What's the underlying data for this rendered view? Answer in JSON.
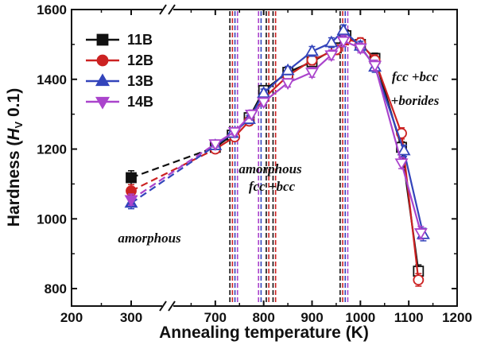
{
  "chart_data": {
    "type": "line",
    "xlabel": "Annealing temperature (K)",
    "ylabel_main": "Hardness (",
    "ylabel_sym": "H",
    "ylabel_sub": "V",
    "ylabel_tail": " 0.1)",
    "x_ticks": [
      "200",
      "300",
      "700",
      "800",
      "900",
      "1000",
      "1100",
      "1200"
    ],
    "y_ticks": [
      "800",
      "1000",
      "1200",
      "1400",
      "1600"
    ],
    "xlim_left": [
      200,
      360
    ],
    "xlim_right": [
      600,
      1200
    ],
    "ylim": [
      750,
      1600
    ],
    "series": [
      {
        "name": "11B",
        "color": "#111111",
        "marker": "square",
        "x": [
          300,
          700,
          735,
          770,
          800,
          850,
          900,
          950,
          970,
          1000,
          1030,
          1085,
          1120
        ],
        "y": [
          1118,
          1205,
          1240,
          1290,
          1368,
          1420,
          1450,
          1490,
          1525,
          1500,
          1460,
          1205,
          850
        ],
        "err": [
          20,
          10,
          10,
          12,
          12,
          12,
          14,
          14,
          16,
          14,
          15,
          16,
          18
        ]
      },
      {
        "name": "12B",
        "color": "#cc2222",
        "marker": "circle",
        "x": [
          300,
          700,
          740,
          770,
          800,
          850,
          900,
          950,
          970,
          1000,
          1030,
          1085,
          1120
        ],
        "y": [
          1080,
          1200,
          1235,
          1280,
          1345,
          1410,
          1455,
          1485,
          1515,
          1505,
          1455,
          1245,
          825
        ],
        "err": [
          18,
          10,
          10,
          12,
          12,
          12,
          14,
          14,
          16,
          14,
          15,
          16,
          18
        ]
      },
      {
        "name": "13B",
        "color": "#3344bb",
        "marker": "triangle-up",
        "x": [
          300,
          700,
          735,
          770,
          800,
          850,
          900,
          940,
          965,
          1000,
          1030,
          1090,
          1130
        ],
        "y": [
          1045,
          1210,
          1245,
          1285,
          1360,
          1425,
          1480,
          1505,
          1540,
          1495,
          1435,
          1195,
          955
        ],
        "err": [
          16,
          10,
          10,
          12,
          12,
          12,
          14,
          14,
          16,
          14,
          15,
          16,
          18
        ]
      },
      {
        "name": "14B",
        "color": "#aa44cc",
        "marker": "triangle-down",
        "x": [
          300,
          700,
          740,
          775,
          800,
          850,
          900,
          940,
          965,
          1000,
          1030,
          1085,
          1125
        ],
        "y": [
          1055,
          1215,
          1250,
          1300,
          1335,
          1390,
          1420,
          1470,
          1510,
          1490,
          1440,
          1160,
          960
        ],
        "err": [
          16,
          10,
          10,
          12,
          12,
          12,
          14,
          14,
          16,
          14,
          15,
          16,
          18
        ]
      }
    ],
    "vlines": [
      {
        "x": 738,
        "colors": [
          "#111111",
          "#cc2222",
          "#3344bb",
          "#aa44cc"
        ]
      },
      {
        "x": 792,
        "colors": [
          "#aa44cc",
          "#3344bb"
        ]
      },
      {
        "x": 808,
        "colors": [
          "#111111",
          "#cc2222"
        ]
      },
      {
        "x": 822,
        "colors": [
          "#111111",
          "#cc2222"
        ]
      },
      {
        "x": 966,
        "colors": [
          "#111111",
          "#cc2222",
          "#3344bb",
          "#aa44cc"
        ]
      }
    ],
    "annotations": {
      "amorphous": "amorphous",
      "amorphous_mid": "amorphous",
      "mid_phase": "fcc +bcc",
      "right_phase": "fcc +bcc",
      "right_borides": "+borides"
    }
  }
}
